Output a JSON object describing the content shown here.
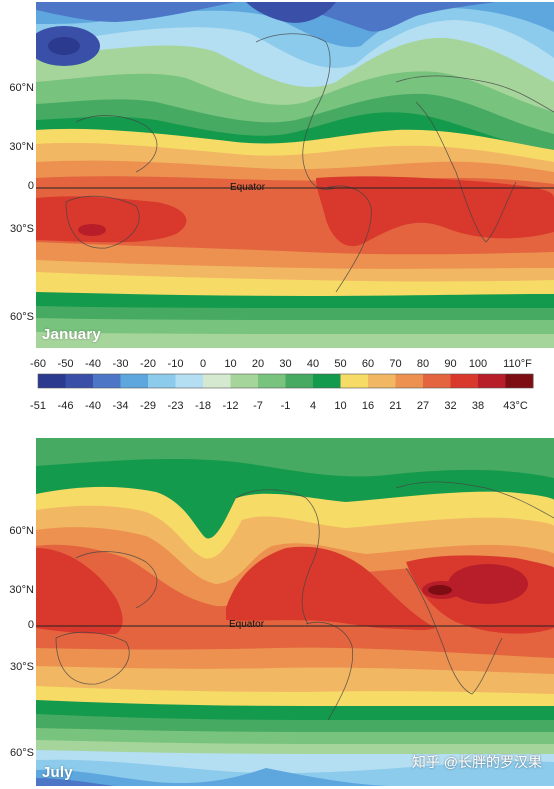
{
  "colors": {
    "scale": [
      "#2b3a8f",
      "#3a50a8",
      "#4d77c6",
      "#5ea7de",
      "#8ccbec",
      "#b4def2",
      "#d5e9d0",
      "#a6d59c",
      "#78c37e",
      "#46aa62",
      "#149a4c",
      "#f7db67",
      "#f2b763",
      "#ec9150",
      "#e3643e",
      "#d9382c",
      "#b81e2a",
      "#7d0d12"
    ],
    "coastline": "#444444"
  },
  "legend": {
    "fahrenheit": [
      "-60",
      "-50",
      "-40",
      "-30",
      "-20",
      "-10",
      "0",
      "10",
      "20",
      "30",
      "40",
      "50",
      "60",
      "70",
      "80",
      "90",
      "100",
      "110°F"
    ],
    "celsius": [
      "-51",
      "-46",
      "-40",
      "-34",
      "-29",
      "-23",
      "-18",
      "-12",
      "-7",
      "-1",
      "4",
      "10",
      "16",
      "21",
      "27",
      "32",
      "38",
      "43°C"
    ]
  },
  "maps": {
    "january": {
      "label": "January",
      "equator": "Equator",
      "latitudes": [
        "60°N",
        "30°N",
        "0",
        "30°S",
        "60°S"
      ]
    },
    "july": {
      "label": "July",
      "equator": "Equator",
      "latitudes": [
        "60°N",
        "30°N",
        "0",
        "30°S",
        "60°S"
      ]
    }
  },
  "watermark": "知乎 @长胖的罗汉果"
}
